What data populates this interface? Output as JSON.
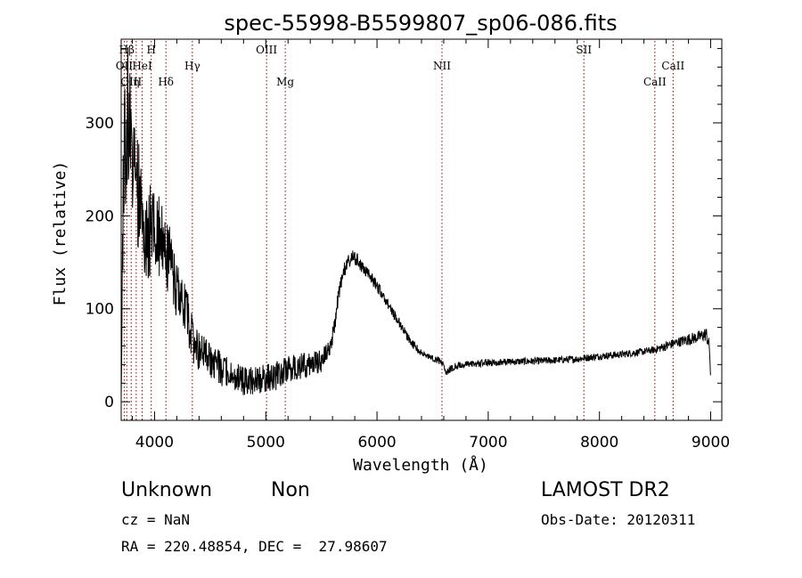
{
  "chart_data": {
    "type": "line",
    "title": "spec-55998-B5599807_sp06-086.fits",
    "xlabel": "Wavelength (Å)",
    "ylabel": "Flux (relative)",
    "xlim": [
      3700,
      9100
    ],
    "ylim": [
      -20,
      390
    ],
    "xticks": [
      4000,
      5000,
      6000,
      7000,
      8000,
      9000
    ],
    "yticks": [
      0,
      100,
      200,
      300
    ],
    "grid": false,
    "line_color": "#000000",
    "marker_color": "#8b0000",
    "spectrum_anchors": {
      "x": [
        3700,
        3720,
        3760,
        3800,
        3850,
        3900,
        3950,
        4000,
        4050,
        4100,
        4150,
        4200,
        4250,
        4300,
        4350,
        4400,
        4500,
        4600,
        4700,
        4800,
        4900,
        5000,
        5100,
        5200,
        5300,
        5400,
        5500,
        5580,
        5620,
        5660,
        5700,
        5740,
        5780,
        5820,
        5900,
        6000,
        6100,
        6200,
        6300,
        6400,
        6500,
        6550,
        6600,
        6620,
        6700,
        6800,
        7000,
        7200,
        7500,
        7800,
        8000,
        8200,
        8400,
        8500,
        8600,
        8700,
        8800,
        8900,
        8960,
        8990,
        9000
      ],
      "y": [
        10,
        250,
        320,
        270,
        230,
        200,
        180,
        190,
        175,
        160,
        150,
        115,
        110,
        90,
        60,
        55,
        45,
        35,
        28,
        22,
        22,
        25,
        28,
        35,
        38,
        40,
        45,
        55,
        85,
        120,
        140,
        150,
        155,
        152,
        140,
        125,
        105,
        85,
        65,
        52,
        47,
        45,
        40,
        32,
        38,
        40,
        42,
        43,
        44,
        46,
        49,
        51,
        54,
        56,
        60,
        64,
        67,
        70,
        73,
        58,
        22
      ],
      "noise": [
        5,
        60,
        60,
        55,
        50,
        45,
        40,
        38,
        35,
        30,
        28,
        25,
        22,
        22,
        20,
        18,
        15,
        14,
        13,
        12,
        12,
        12,
        12,
        11,
        11,
        10,
        10,
        8,
        8,
        7,
        7,
        6,
        6,
        6,
        5,
        5,
        4,
        4,
        4,
        3,
        3,
        3,
        3,
        3,
        3,
        3,
        3,
        3,
        3,
        3,
        3,
        3,
        3,
        3,
        4,
        4,
        5,
        5,
        6,
        6,
        2
      ]
    },
    "lines": [
      {
        "label": "Hβ",
        "wavelength": 3750,
        "row": 0
      },
      {
        "label": "H",
        "wavelength": 3970,
        "row": 0
      },
      {
        "label": "OII",
        "wavelength": 3727,
        "row": 1
      },
      {
        "label": "HeI",
        "wavelength": 3889,
        "row": 1
      },
      {
        "label": "OIII",
        "wavelength": 3790,
        "row": 2
      },
      {
        "label": "η",
        "wavelength": 3835,
        "row": 2
      },
      {
        "label": "Hδ",
        "wavelength": 4102,
        "row": 2
      },
      {
        "label": "Hγ",
        "wavelength": 4340,
        "row": 1
      },
      {
        "label": "OIII",
        "wavelength": 5007,
        "row": 0
      },
      {
        "label": "Mg",
        "wavelength": 5175,
        "row": 2
      },
      {
        "label": "NII",
        "wavelength": 6584,
        "row": 1
      },
      {
        "label": "SII",
        "wavelength": 7860,
        "row": 0
      },
      {
        "label": "CaII",
        "wavelength": 8498,
        "row": 2
      },
      {
        "label": "CaII",
        "wavelength": 8662,
        "row": 1
      }
    ]
  },
  "info": {
    "class": "Unknown",
    "subclass": "Non",
    "cz": "cz = NaN",
    "coords": "RA = 220.48854, DEC =  27.98607",
    "survey": "LAMOST DR2",
    "obs_date": "Obs-Date: 20120311"
  }
}
